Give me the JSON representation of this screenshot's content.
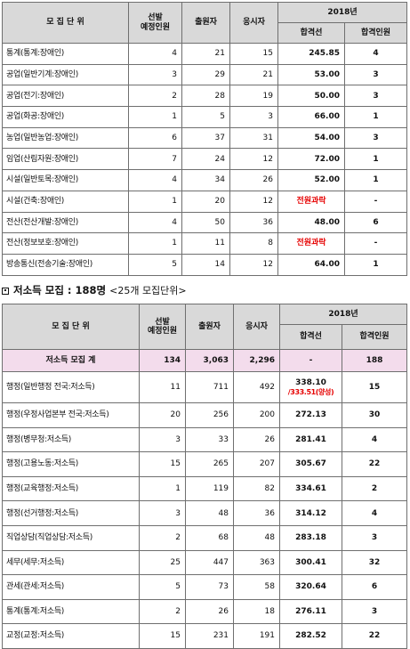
{
  "table1": {
    "headers": {
      "unit": "모 집 단 위",
      "planned": "선발\n예정인원",
      "applicants": "출원자",
      "examinees": "응시자",
      "year": "2018년",
      "cutoff": "합격선",
      "passers": "합격인원"
    },
    "rows": [
      {
        "unit": "통계(통계:장애인)",
        "planned": "4",
        "applicants": "21",
        "examinees": "15",
        "cutoff": "245.85",
        "passers": "4"
      },
      {
        "unit": "공업(일반기계:장애인)",
        "planned": "3",
        "applicants": "29",
        "examinees": "21",
        "cutoff": "53.00",
        "passers": "3"
      },
      {
        "unit": "공업(전기:장애인)",
        "planned": "2",
        "applicants": "28",
        "examinees": "19",
        "cutoff": "50.00",
        "passers": "3"
      },
      {
        "unit": "공업(화공:장애인)",
        "planned": "1",
        "applicants": "5",
        "examinees": "3",
        "cutoff": "66.00",
        "passers": "1"
      },
      {
        "unit": "농업(일반농업:장애인)",
        "planned": "6",
        "applicants": "37",
        "examinees": "31",
        "cutoff": "54.00",
        "passers": "3"
      },
      {
        "unit": "임업(산림자원:장애인)",
        "planned": "7",
        "applicants": "24",
        "examinees": "12",
        "cutoff": "72.00",
        "passers": "1"
      },
      {
        "unit": "시설(일반토목:장애인)",
        "planned": "4",
        "applicants": "34",
        "examinees": "26",
        "cutoff": "52.00",
        "passers": "1"
      },
      {
        "unit": "시설(건축:장애인)",
        "planned": "1",
        "applicants": "20",
        "examinees": "12",
        "cutoff": "전원과락",
        "passers": "-",
        "cutoff_red": true
      },
      {
        "unit": "전산(전산개발:장애인)",
        "planned": "4",
        "applicants": "50",
        "examinees": "36",
        "cutoff": "48.00",
        "passers": "6"
      },
      {
        "unit": "전산(정보보호:장애인)",
        "planned": "1",
        "applicants": "11",
        "examinees": "8",
        "cutoff": "전원과락",
        "passers": "-",
        "cutoff_red": true
      },
      {
        "unit": "방송통신(전송기술:장애인)",
        "planned": "5",
        "applicants": "14",
        "examinees": "12",
        "cutoff": "64.00",
        "passers": "1"
      }
    ]
  },
  "section2": {
    "title": "저소득 모집 : 188명",
    "subtitle": "<25개 모집단위>"
  },
  "table2": {
    "headers": {
      "unit": "모 집 단 위",
      "planned": "선발\n예정인원",
      "applicants": "출원자",
      "examinees": "응시자",
      "year": "2018년",
      "cutoff": "합격선",
      "passers": "합격인원"
    },
    "total": {
      "unit": "저소득 모집 계",
      "planned": "134",
      "applicants": "3,063",
      "examinees": "2,296",
      "cutoff": "-",
      "passers": "188"
    },
    "rows": [
      {
        "unit": "행정(일반행정 전국:저소득)",
        "planned": "11",
        "applicants": "711",
        "examinees": "492",
        "cutoff": "338.10",
        "cutoff_note": "/333.51(양성)",
        "passers": "15"
      },
      {
        "unit": "행정(우정사업본부 전국:저소득)",
        "planned": "20",
        "applicants": "256",
        "examinees": "200",
        "cutoff": "272.13",
        "passers": "30"
      },
      {
        "unit": "행정(병무청:저소득)",
        "planned": "3",
        "applicants": "33",
        "examinees": "26",
        "cutoff": "281.41",
        "passers": "4"
      },
      {
        "unit": "행정(고용노동:저소득)",
        "planned": "15",
        "applicants": "265",
        "examinees": "207",
        "cutoff": "305.67",
        "passers": "22"
      },
      {
        "unit": "행정(교육행정:저소득)",
        "planned": "1",
        "applicants": "119",
        "examinees": "82",
        "cutoff": "334.61",
        "passers": "2"
      },
      {
        "unit": "행정(선거행정:저소득)",
        "planned": "3",
        "applicants": "48",
        "examinees": "36",
        "cutoff": "314.12",
        "passers": "4"
      },
      {
        "unit": "직업상담(직업상담:저소득)",
        "planned": "2",
        "applicants": "68",
        "examinees": "48",
        "cutoff": "283.18",
        "passers": "3"
      },
      {
        "unit": "세무(세무:저소득)",
        "planned": "25",
        "applicants": "447",
        "examinees": "363",
        "cutoff": "300.41",
        "passers": "32"
      },
      {
        "unit": "관세(관세:저소득)",
        "planned": "5",
        "applicants": "73",
        "examinees": "58",
        "cutoff": "320.64",
        "passers": "6"
      },
      {
        "unit": "통계(통계:저소득)",
        "planned": "2",
        "applicants": "26",
        "examinees": "18",
        "cutoff": "276.11",
        "passers": "3"
      },
      {
        "unit": "교정(교정:저소득)",
        "planned": "15",
        "applicants": "231",
        "examinees": "191",
        "cutoff": "282.52",
        "passers": "22"
      }
    ]
  }
}
